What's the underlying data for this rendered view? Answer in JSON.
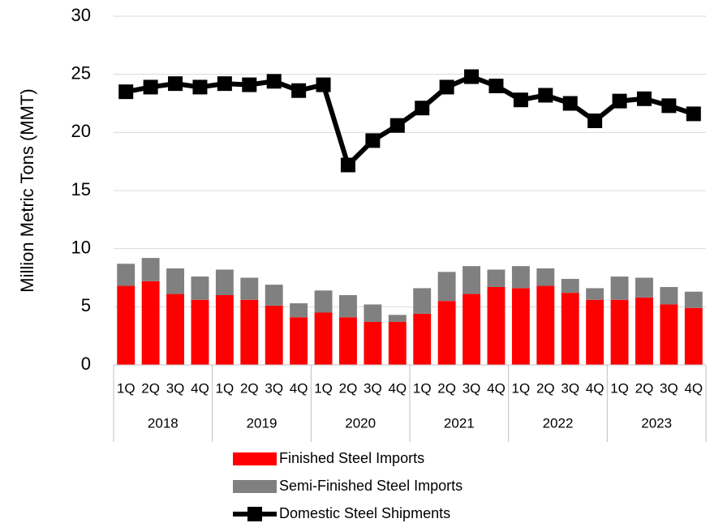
{
  "chart_data": {
    "type": "bar",
    "y_label": "Million Metric Tons (MMT)",
    "categories": [
      "1Q",
      "2Q",
      "3Q",
      "4Q",
      "1Q",
      "2Q",
      "3Q",
      "4Q",
      "1Q",
      "2Q",
      "3Q",
      "4Q",
      "1Q",
      "2Q",
      "3Q",
      "4Q",
      "1Q",
      "2Q",
      "3Q",
      "4Q",
      "1Q",
      "2Q",
      "3Q",
      "4Q"
    ],
    "groups": [
      "2018",
      "2019",
      "2020",
      "2021",
      "2022",
      "2023"
    ],
    "stacked": true,
    "series": [
      {
        "name": "Finished Steel Imports",
        "color": "#ff0000",
        "kind": "bar",
        "values": [
          6.8,
          7.2,
          6.1,
          5.6,
          6.0,
          5.6,
          5.1,
          4.1,
          4.5,
          4.1,
          3.7,
          3.7,
          4.4,
          5.5,
          6.1,
          6.7,
          6.6,
          6.8,
          6.2,
          5.6,
          5.6,
          5.8,
          5.2,
          4.9
        ]
      },
      {
        "name": "Semi-Finished Steel Imports",
        "color": "#808080",
        "kind": "bar",
        "values": [
          1.9,
          2.0,
          2.2,
          2.0,
          2.2,
          1.9,
          1.8,
          1.2,
          1.9,
          1.9,
          1.5,
          0.6,
          2.2,
          2.5,
          2.4,
          1.5,
          1.9,
          1.5,
          1.2,
          1.0,
          2.0,
          1.7,
          1.5,
          1.4
        ]
      },
      {
        "name": "Domestic Steel Shipments",
        "color": "#000000",
        "kind": "line",
        "values": [
          23.5,
          23.9,
          24.2,
          23.9,
          24.2,
          24.1,
          24.4,
          23.6,
          24.1,
          17.2,
          19.3,
          20.6,
          22.1,
          23.9,
          24.8,
          24.0,
          22.8,
          23.2,
          22.5,
          21.0,
          22.7,
          22.9,
          22.3,
          21.6
        ]
      }
    ],
    "ylim": [
      0,
      30
    ],
    "yticks": [
      0,
      5,
      10,
      15,
      20,
      25,
      30
    ],
    "grid": true,
    "legend": "bottom"
  }
}
